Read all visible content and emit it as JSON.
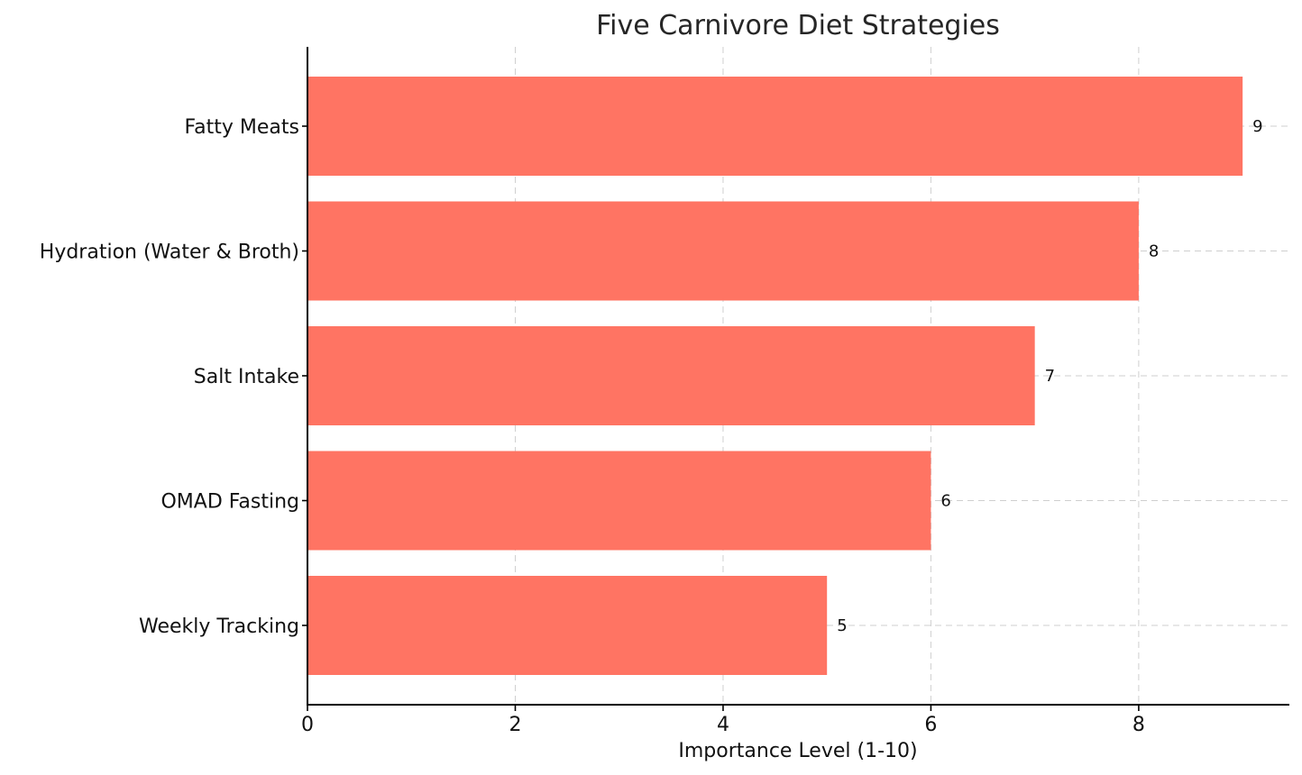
{
  "chart_data": {
    "type": "bar",
    "orientation": "horizontal",
    "title": "Five Carnivore Diet Strategies",
    "xlabel": "Importance Level (1-10)",
    "ylabel": "",
    "categories": [
      "Fatty Meats",
      "Hydration (Water & Broth)",
      "Salt Intake",
      "OMAD Fasting",
      "Weekly Tracking"
    ],
    "values": [
      9,
      8,
      7,
      6,
      5
    ],
    "value_labels": [
      "9",
      "8",
      "7",
      "6",
      "5"
    ],
    "xlim": [
      0,
      9.45
    ],
    "xticks": [
      0,
      2,
      4,
      6,
      8
    ],
    "xtick_labels": [
      "0",
      "2",
      "4",
      "6",
      "8"
    ],
    "grid": true,
    "bar_color": "#ff7463"
  }
}
